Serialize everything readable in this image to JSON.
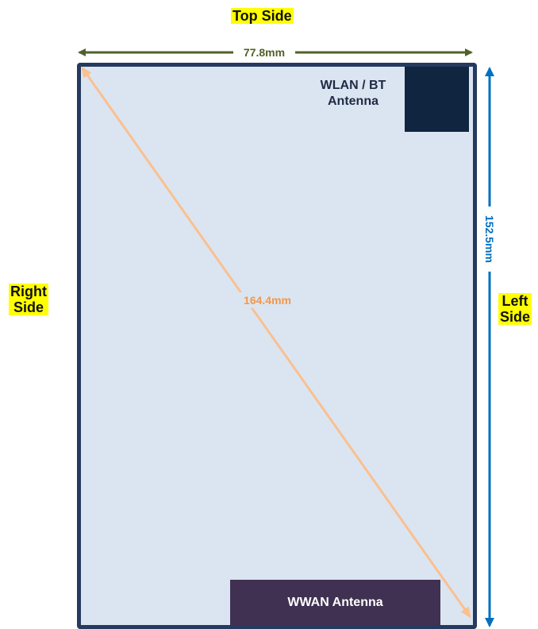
{
  "labels": {
    "top_side": "Top Side",
    "right_side_line1": "Right",
    "right_side_line2": "Side",
    "left_side_line1": "Left",
    "left_side_line2": "Side"
  },
  "device": {
    "wlan_line1": "WLAN / BT",
    "wlan_line2": "Antenna",
    "wwan": "WWAN Antenna"
  },
  "dimensions": {
    "width": "77.8mm",
    "height": "152.5mm",
    "diagonal": "164.4mm"
  },
  "colors": {
    "width_arrow": "#4f6228",
    "height_arrow": "#0070c0",
    "diagonal_arrow": "#fac090",
    "frame": "#253a5e",
    "screen": "#dbe5f1",
    "wlan_block": "#10253f",
    "wwan_block": "#403152",
    "highlight": "#ffff00"
  }
}
